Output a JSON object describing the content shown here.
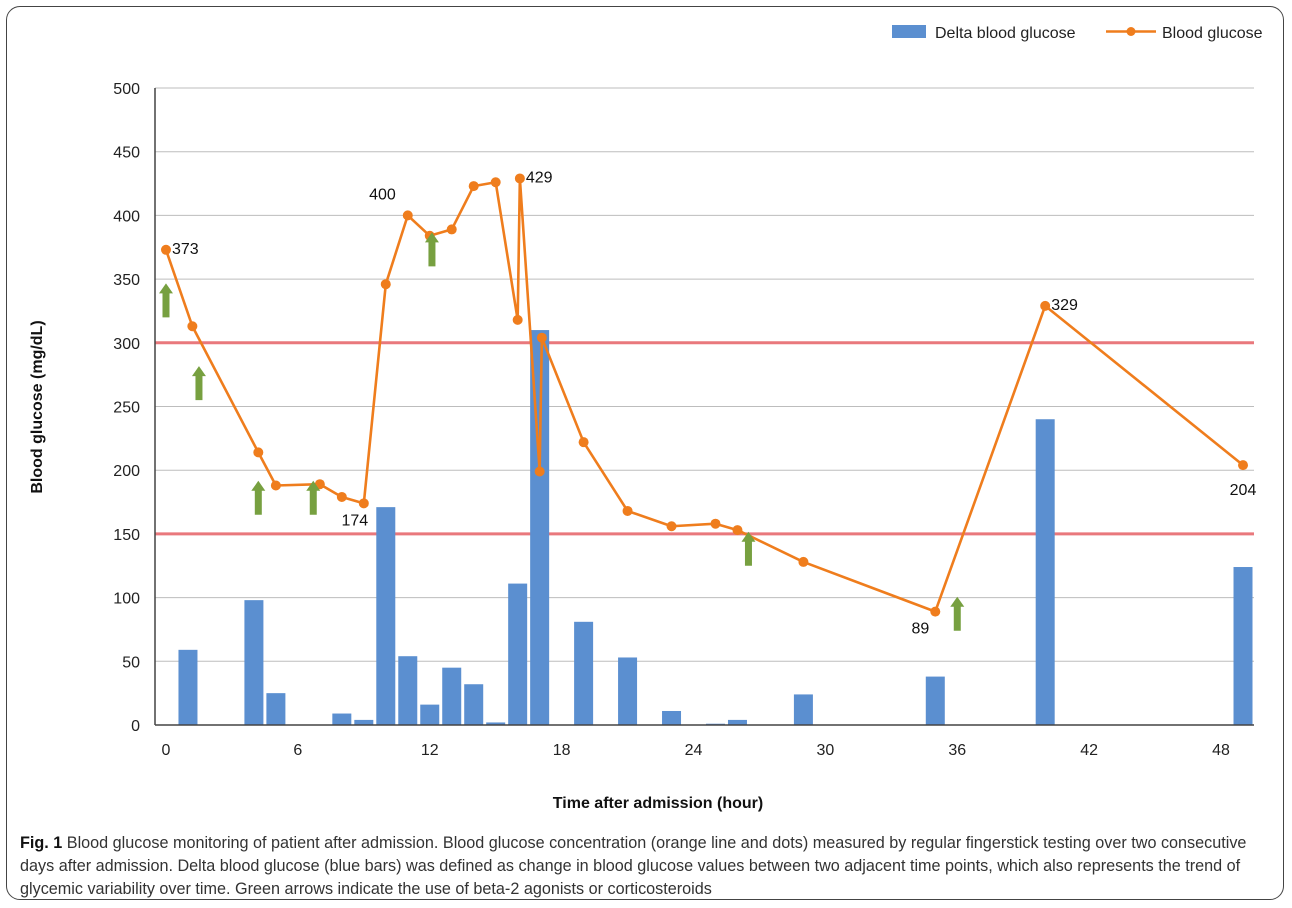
{
  "chart_data": {
    "type": "bar+line",
    "title": "",
    "xlabel": "Time after admission (hour)",
    "ylabel": "Blood glucose (mg/dL)",
    "xlim": [
      -0.5,
      49.5
    ],
    "ylim": [
      0,
      500
    ],
    "x_ticks": [
      "0",
      "6",
      "12",
      "18",
      "24",
      "30",
      "36",
      "42",
      "48"
    ],
    "y_ticks": [
      "0",
      "50",
      "100",
      "150",
      "200",
      "250",
      "300",
      "350",
      "400",
      "450",
      "500"
    ],
    "grid": "horizontal",
    "legend_position": "top-right",
    "threshold_lines": [
      150,
      300
    ],
    "threshold_color": "#e9787c",
    "series": [
      {
        "name": "Delta blood glucose",
        "type": "bar",
        "color": "#5b8fd0",
        "x": [
          1,
          4,
          5,
          8,
          9,
          10,
          11,
          12,
          13,
          14,
          15,
          16,
          17,
          19,
          21,
          23,
          25,
          26,
          29,
          35,
          40,
          49
        ],
        "values": [
          59,
          98,
          25,
          9,
          4,
          171,
          54,
          16,
          45,
          32,
          2,
          111,
          310,
          81,
          53,
          11,
          1,
          4,
          24,
          38,
          240,
          124
        ]
      },
      {
        "name": "Blood glucose",
        "type": "line",
        "color": "#ef7d1d",
        "x": [
          0,
          1.2,
          4.2,
          5,
          7,
          8,
          9,
          10,
          11,
          12,
          13,
          14,
          15,
          16,
          16.1,
          17,
          17.1,
          19,
          21,
          23,
          25,
          26,
          29,
          35,
          40,
          49
        ],
        "values": [
          373,
          313,
          214,
          188,
          189,
          179,
          174,
          346,
          400,
          384,
          389,
          423,
          426,
          318,
          429,
          199,
          304,
          222,
          168,
          156,
          158,
          153,
          128,
          89,
          329,
          204
        ]
      }
    ],
    "data_labels": [
      {
        "text": "373",
        "x": 0,
        "y": 373,
        "anchor": "right"
      },
      {
        "text": "174",
        "x": 9,
        "y": 174,
        "anchor": "below-left"
      },
      {
        "text": "400",
        "x": 11,
        "y": 400,
        "anchor": "above-left"
      },
      {
        "text": "429",
        "x": 16.1,
        "y": 429,
        "anchor": "right"
      },
      {
        "text": "89",
        "x": 35,
        "y": 89,
        "anchor": "below-left"
      },
      {
        "text": "329",
        "x": 40,
        "y": 329,
        "anchor": "right"
      },
      {
        "text": "204",
        "x": 49,
        "y": 204,
        "anchor": "below"
      }
    ],
    "arrows": {
      "meaning": "use of beta-2 agonists or corticosteroids",
      "color": "#77a040",
      "points": [
        {
          "x": 0,
          "y": 320
        },
        {
          "x": 1.5,
          "y": 255
        },
        {
          "x": 4.2,
          "y": 165
        },
        {
          "x": 6.7,
          "y": 165
        },
        {
          "x": 12.1,
          "y": 360
        },
        {
          "x": 26.5,
          "y": 125
        },
        {
          "x": 36,
          "y": 74
        }
      ]
    }
  },
  "legend": {
    "bar_label": "Delta blood glucose",
    "line_label": "Blood glucose"
  },
  "caption": {
    "label": "Fig. 1",
    "text": " Blood glucose monitoring of patient after admission. Blood glucose concentration (orange line and dots) measured by regular fingerstick testing over two consecutive days after admission. Delta blood glucose (blue bars) was defined as change in blood glucose values between two adjacent time points, which also represents the trend of glycemic variability over time. Green arrows indicate the use of beta-2 agonists or corticosteroids"
  }
}
